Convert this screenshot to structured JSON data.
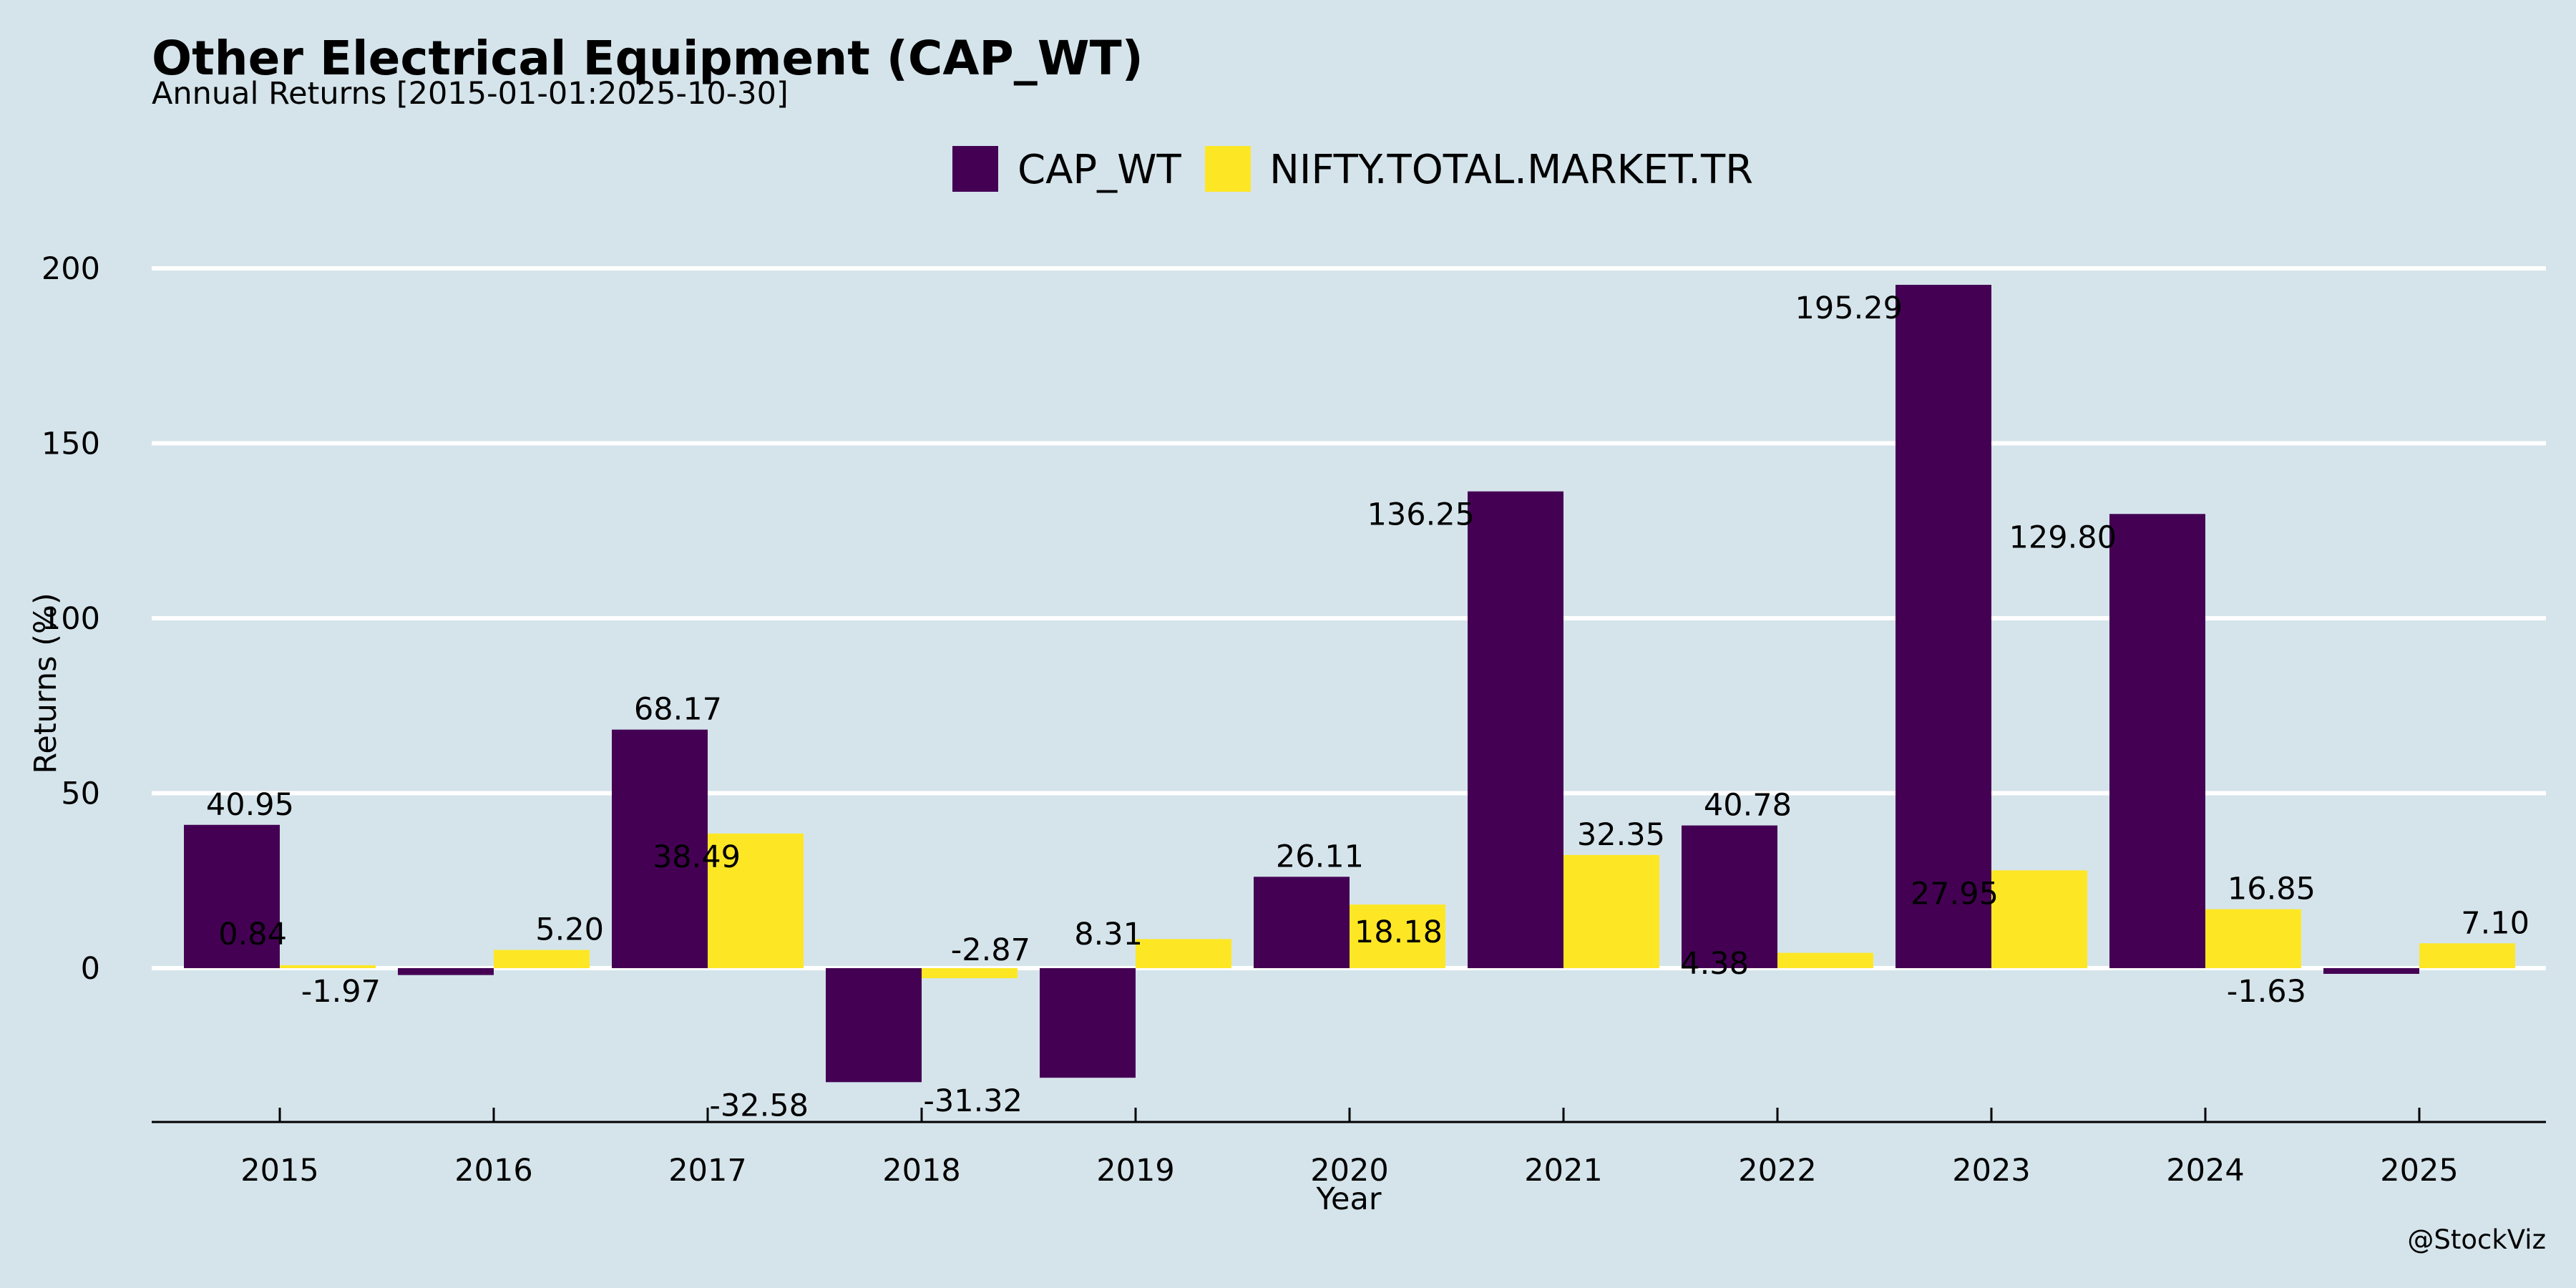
{
  "chart_data": {
    "type": "bar",
    "title": "Other Electrical Equipment (CAP_WT)",
    "subtitle": "Annual Returns [2015-01-01:2025-10-30]",
    "xlabel": "Year",
    "ylabel": "Returns (%)",
    "categories": [
      "2015",
      "2016",
      "2017",
      "2018",
      "2019",
      "2020",
      "2021",
      "2022",
      "2023",
      "2024",
      "2025"
    ],
    "series": [
      {
        "name": "CAP_WT",
        "color": "#440154",
        "values": [
          40.95,
          -1.97,
          68.17,
          -32.58,
          -31.32,
          26.11,
          136.25,
          40.78,
          195.29,
          129.8,
          -1.63
        ],
        "labels": [
          "40.95",
          "-1.97",
          "68.17",
          "-32.58",
          "-31.32",
          "26.11",
          "136.25",
          "40.78",
          "195.29",
          "129.80",
          "-1.63"
        ]
      },
      {
        "name": "NIFTY.TOTAL.MARKET.TR",
        "color": "#fde725",
        "values": [
          0.84,
          5.2,
          38.49,
          -2.87,
          8.31,
          18.18,
          32.35,
          4.38,
          27.95,
          16.85,
          7.1
        ],
        "labels": [
          "0.84",
          "5.20",
          "38.49",
          "-2.87",
          "8.31",
          "18.18",
          "32.35",
          "4.38",
          "27.95",
          "16.85",
          "7.10"
        ]
      }
    ],
    "yticks": [
      "0",
      "50",
      "100",
      "150",
      "200"
    ],
    "ylim": [
      -44,
      210
    ],
    "grid": "horizontal",
    "legend": "top-center"
  },
  "credit": "@StockViz"
}
